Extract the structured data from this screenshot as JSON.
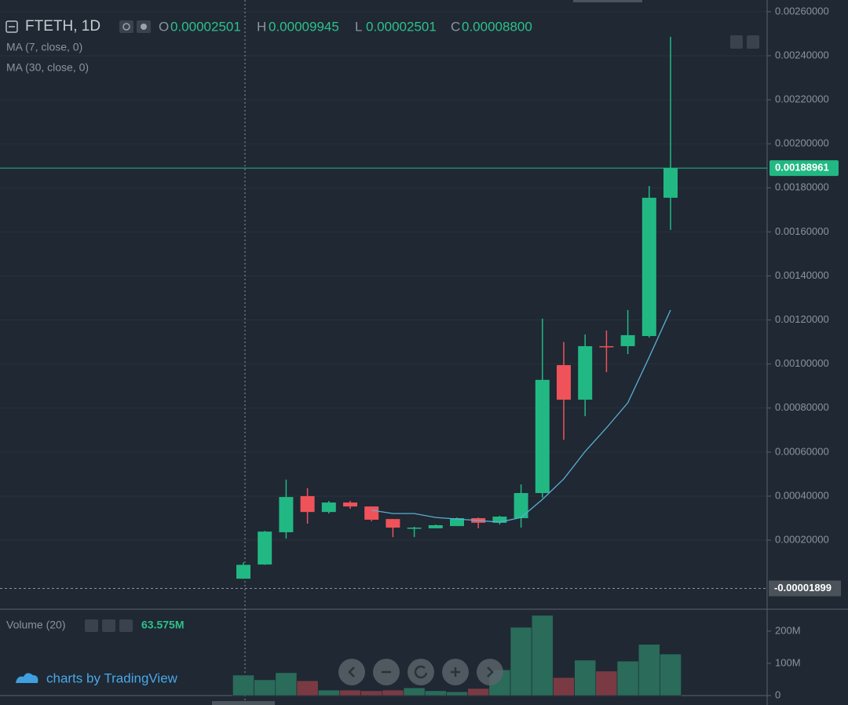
{
  "chart_data": [
    {
      "type": "candlestick",
      "title": "FTETH, 1D",
      "ohlc_labels": [
        "O",
        "H",
        "L",
        "C"
      ],
      "ohlc_values": [
        "0.00002501",
        "0.00009945",
        "0.00002501",
        "0.00008800"
      ],
      "open": [
        2.5e-05,
        8.94e-05,
        0.000236,
        0.0004,
        0.000328,
        0.000371,
        0.000353,
        0.000296,
        0.000254,
        0.000254,
        0.000264,
        0.0003,
        0.000279,
        0.0003,
        0.000414,
        0.000995,
        0.000838,
        0.001081,
        0.001081,
        0.001127,
        0.001755
      ],
      "high": [
        9.94e-05,
        0.000242,
        0.000475,
        0.000436,
        0.000378,
        0.000378,
        0.000353,
        0.000296,
        0.000261,
        0.000271,
        0.000303,
        0.000303,
        0.000311,
        0.000453,
        0.001206,
        0.0011,
        0.001134,
        0.001152,
        0.001245,
        0.001808,
        0.002486
      ],
      "low": [
        2.5e-05,
        8.8e-05,
        0.000207,
        0.000275,
        0.000321,
        0.000343,
        0.000286,
        0.000214,
        0.000214,
        0.000254,
        0.000264,
        0.000254,
        0.000271,
        0.000257,
        0.000393,
        0.000656,
        0.000763,
        0.000963,
        0.001045,
        0.00112,
        0.001609
      ],
      "close": [
        8.8e-05,
        0.000239,
        0.000396,
        0.000328,
        0.000371,
        0.000353,
        0.000293,
        0.000257,
        0.000257,
        0.000268,
        0.0003,
        0.000279,
        0.000307,
        0.000414,
        0.000928,
        0.000838,
        0.001081,
        0.001078,
        0.001131,
        0.001755,
        0.00188961
      ],
      "up_color": "#22b884",
      "down_color": "#f0525a",
      "indicators": [
        {
          "name": "MA (7, close, 0)",
          "color": "#5aaed3",
          "values": [
            null,
            null,
            null,
            null,
            null,
            null,
            0.000336,
            0.000321,
            0.000321,
            0.000303,
            0.000296,
            0.000289,
            0.000282,
            0.000303,
            0.000385,
            0.000478,
            0.000603,
            0.00071,
            0.000824,
            0.001031,
            0.001245
          ]
        },
        {
          "name": "MA (30, close, 0)"
        }
      ],
      "last_price_label": "0.00188961",
      "crosshair": {
        "value": -1.899e-05,
        "label": "-0.00001899"
      },
      "ylim": [
        -0.00011,
        0.002653
      ],
      "yticks": [
        {
          "value": 0.0026,
          "label": "0.00260000"
        },
        {
          "value": 0.0024,
          "label": "0.00240000"
        },
        {
          "value": 0.0022,
          "label": "0.00220000"
        },
        {
          "value": 0.002,
          "label": "0.00200000"
        },
        {
          "value": 0.0018,
          "label": "0.00180000"
        },
        {
          "value": 0.0016,
          "label": "0.00160000"
        },
        {
          "value": 0.0014,
          "label": "0.00140000"
        },
        {
          "value": 0.0012,
          "label": "0.00120000"
        },
        {
          "value": 0.001,
          "label": "0.00100000"
        },
        {
          "value": 0.0008,
          "label": "0.00080000"
        },
        {
          "value": 0.0006,
          "label": "0.00060000"
        },
        {
          "value": 0.0004,
          "label": "0.00040000"
        },
        {
          "value": 0.0002,
          "label": "0.00020000"
        }
      ],
      "grid": true
    },
    {
      "type": "bar",
      "title": "Volume (20)",
      "value_label": "63.575M",
      "values": [
        63575000,
        49000000,
        71000000,
        46000000,
        17000000,
        17000000,
        15000000,
        17000000,
        24000000,
        15000000,
        12000000,
        22000000,
        80000000,
        212000000,
        249000000,
        56000000,
        110000000,
        76000000,
        107000000,
        159000000,
        129000000
      ],
      "up_color": "#2a6b5a",
      "down_color": "#7a3a44",
      "ylim": [
        0,
        268000000
      ],
      "yticks": [
        0,
        {
          "value": 100000000,
          "label": "100M"
        },
        {
          "value": 200000000,
          "label": "200M"
        }
      ]
    }
  ],
  "branding": "charts by TradingView"
}
